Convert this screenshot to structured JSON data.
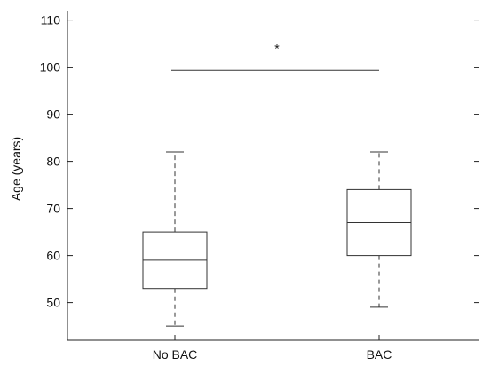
{
  "chart_data": {
    "type": "boxplot",
    "title": "",
    "xlabel": "",
    "ylabel": "Age (years)",
    "ylim": [
      42,
      112
    ],
    "yticks": [
      50,
      60,
      70,
      80,
      90,
      100,
      110
    ],
    "categories": [
      "No BAC",
      "BAC"
    ],
    "boxes": [
      {
        "category": "No BAC",
        "whisker_low": 45,
        "q1": 53,
        "median": 59,
        "q3": 65,
        "whisker_high": 82
      },
      {
        "category": "BAC",
        "whisker_low": 49,
        "q1": 60,
        "median": 67,
        "q3": 74,
        "whisker_high": 82
      }
    ],
    "annotations": [
      {
        "type": "significance-bar",
        "from": "No BAC",
        "to": "BAC",
        "y": 99.3,
        "label": "*"
      }
    ],
    "grid": false,
    "colors": {
      "line": "#333333",
      "axis": "#222222",
      "background": "#ffffff"
    }
  }
}
